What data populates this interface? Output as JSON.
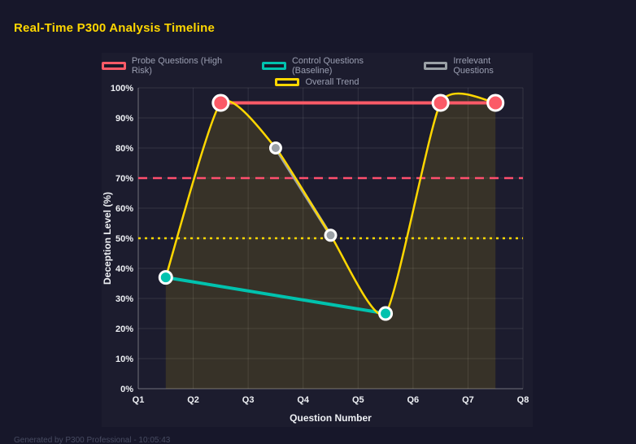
{
  "page": {
    "title": "Real-Time P300 Analysis Timeline",
    "footer": "Generated by P300 Professional - 10:05:43"
  },
  "colors": {
    "background": "#17172a",
    "panel": "#1c1c2e",
    "title": "#ffd700",
    "grid": "rgba(255,255,255,0.10)",
    "axis": "rgba(255,255,255,0.30)",
    "tick_label": "#eef0f4",
    "legend_text": "#9b9fb2"
  },
  "chart_data": {
    "type": "line",
    "xlabel": "Question Number",
    "ylabel": "Deception Level (%)",
    "x_ticks": [
      "Q1",
      "Q2",
      "Q3",
      "Q4",
      "Q5",
      "Q6",
      "Q7",
      "Q8"
    ],
    "x_range": [
      1,
      8
    ],
    "ylim": [
      0,
      100
    ],
    "y_ticks": [
      "0%",
      "10%",
      "20%",
      "30%",
      "40%",
      "50%",
      "60%",
      "70%",
      "80%",
      "90%",
      "100%"
    ],
    "y_tick_values": [
      0,
      10,
      20,
      30,
      40,
      50,
      60,
      70,
      80,
      90,
      100
    ],
    "grid": true,
    "legend_position": "top",
    "legend_rows": [
      [
        0,
        1,
        2
      ],
      [
        3
      ]
    ],
    "series": [
      {
        "name": "Probe Questions (High Risk)",
        "color": "#fb5a67",
        "curve": "linear",
        "line_width": 4,
        "point_radius": 9.5,
        "points": [
          {
            "x": 2.5,
            "y": 95
          },
          {
            "x": 6.5,
            "y": 95
          },
          {
            "x": 7.5,
            "y": 95
          }
        ]
      },
      {
        "name": "Control Questions (Baseline)",
        "color": "#00c2ae",
        "curve": "linear",
        "line_width": 4,
        "point_radius": 7.5,
        "points": [
          {
            "x": 1.5,
            "y": 37
          },
          {
            "x": 5.5,
            "y": 25
          }
        ]
      },
      {
        "name": "Irrelevant Questions",
        "color": "#9aa0a6",
        "curve": "linear",
        "line_width": 4,
        "point_radius": 6.5,
        "points": [
          {
            "x": 3.5,
            "y": 80
          },
          {
            "x": 4.5,
            "y": 51
          }
        ]
      },
      {
        "name": "Overall Trend",
        "color": "#ffd700",
        "curve": "spline",
        "line_width": 2.5,
        "point_radius": 0,
        "fill": "rgba(255,215,0,0.12)",
        "points": [
          {
            "x": 1.5,
            "y": 37
          },
          {
            "x": 2.5,
            "y": 95
          },
          {
            "x": 3.5,
            "y": 80
          },
          {
            "x": 4.5,
            "y": 51
          },
          {
            "x": 5.5,
            "y": 25
          },
          {
            "x": 6.5,
            "y": 95
          },
          {
            "x": 7.5,
            "y": 95
          }
        ]
      }
    ],
    "thresholds": [
      {
        "value": 70,
        "color": "#ff4f6e",
        "dash": "11 7",
        "width": 2.5
      },
      {
        "value": 50,
        "color": "#ffd700",
        "dash": "3 5",
        "width": 2.5
      }
    ]
  }
}
